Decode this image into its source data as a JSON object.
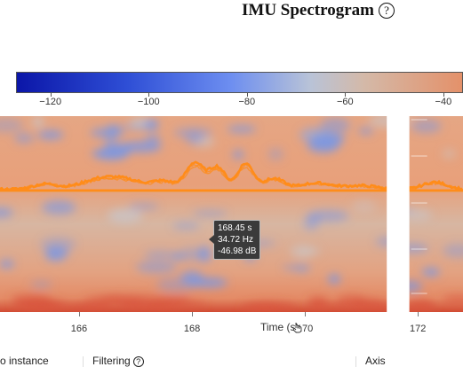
{
  "header": {
    "title": "IMU Spectrogram",
    "help_symbol": "?"
  },
  "colorbar": {
    "ticks": [
      {
        "label": "−120",
        "value": -120
      },
      {
        "label": "−100",
        "value": -100
      },
      {
        "label": "−80",
        "value": -80
      },
      {
        "label": "−60",
        "value": -60
      },
      {
        "label": "−40",
        "value": -40
      }
    ],
    "scale_min": -127,
    "scale_max": -36
  },
  "x_axis": {
    "title": "Time (s)",
    "ticks": [
      {
        "label": "166",
        "value": 166
      },
      {
        "label": "168",
        "value": 168
      },
      {
        "label": "170",
        "value": 170
      },
      {
        "label": "172",
        "value": 172
      }
    ],
    "range": [
      164.6,
      172.8
    ]
  },
  "data_gap": {
    "start": 171.45,
    "end": 171.85
  },
  "tooltip": {
    "time": "168.45 s",
    "frequency": "34.72 Hz",
    "level": "-46.98 dB"
  },
  "bottom_panels": {
    "instance": "o instance",
    "filtering": "Filtering",
    "filtering_help": "?",
    "axis": "Axis"
  },
  "colors": {
    "trace": "#ff8c1a",
    "background_warm": "#e6a37f",
    "background_cool": "#7a97e3",
    "low_band": "#d9533c",
    "gap": "#ffffff"
  }
}
